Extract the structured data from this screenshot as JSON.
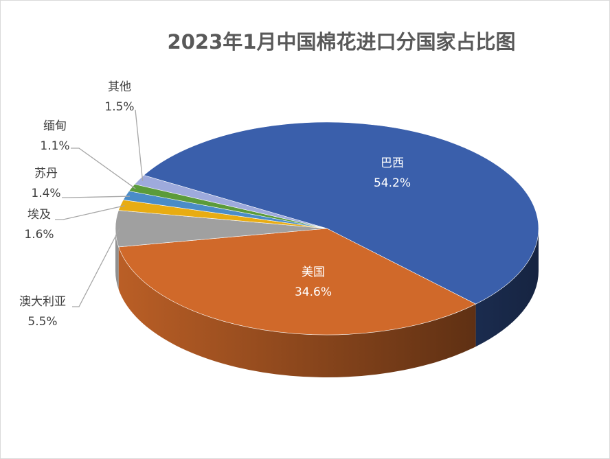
{
  "chart_data": {
    "type": "pie3d",
    "title": "2023年1月中国棉花进口分国家占比图",
    "categories": [
      "巴西",
      "美国",
      "澳大利亚",
      "埃及",
      "苏丹",
      "缅甸",
      "其他"
    ],
    "values": [
      54.2,
      34.6,
      5.5,
      1.6,
      1.4,
      1.1,
      1.5
    ],
    "value_labels": [
      "54.2%",
      "34.6%",
      "5.5%",
      "1.6%",
      "1.4%",
      "1.1%",
      "1.5%"
    ],
    "colors": [
      "#3a5fab",
      "#d0692a",
      "#a0a0a0",
      "#e8ac12",
      "#4a8cc8",
      "#5b9b3a",
      "#9eaadc"
    ]
  }
}
